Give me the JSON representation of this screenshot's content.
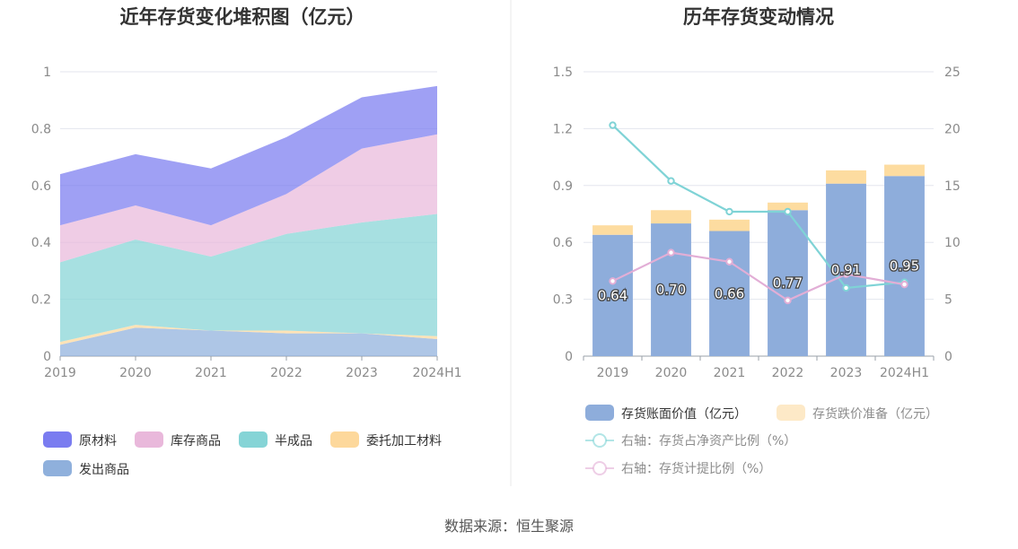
{
  "footer": {
    "source": "数据来源：恒生聚源"
  },
  "chart_data": [
    {
      "type": "area",
      "stacked": true,
      "title": "近年存货变化堆积图（亿元）",
      "x": [
        "2019",
        "2020",
        "2021",
        "2022",
        "2023",
        "2024H1"
      ],
      "ylim": [
        0,
        1
      ],
      "yticks": [
        "0",
        "0.2",
        "0.4",
        "0.6",
        "0.8",
        "1"
      ],
      "grid": true,
      "legend_position": "bottom",
      "series": [
        {
          "name": "发出商品",
          "color": "#8fb0dc",
          "values": [
            0.04,
            0.1,
            0.09,
            0.08,
            0.08,
            0.06
          ]
        },
        {
          "name": "委托加工材料",
          "color": "#fdd89b",
          "values": [
            0.01,
            0.01,
            0.0,
            0.01,
            0.0,
            0.01
          ]
        },
        {
          "name": "半成品",
          "color": "#85d4d6",
          "values": [
            0.28,
            0.3,
            0.26,
            0.34,
            0.39,
            0.43
          ]
        },
        {
          "name": "库存商品",
          "color": "#e9b8db",
          "values": [
            0.13,
            0.12,
            0.11,
            0.14,
            0.26,
            0.28
          ]
        },
        {
          "name": "原材料",
          "color": "#7a7cf0",
          "values": [
            0.18,
            0.18,
            0.2,
            0.2,
            0.18,
            0.17
          ]
        }
      ],
      "legend_order": [
        "原材料",
        "库存商品",
        "半成品",
        "委托加工材料",
        "发出商品"
      ]
    },
    {
      "type": "bar",
      "stacked": true,
      "title": "历年存货变动情况",
      "categories": [
        "2019",
        "2020",
        "2021",
        "2022",
        "2023",
        "2024H1"
      ],
      "ylim": [
        0,
        1.5
      ],
      "yticks": [
        "0",
        "0.3",
        "0.6",
        "0.9",
        "1.2",
        "1.5"
      ],
      "y2lim": [
        0,
        25
      ],
      "y2ticks": [
        "0",
        "5",
        "10",
        "15",
        "20",
        "25"
      ],
      "grid": true,
      "legend_position": "bottom",
      "series": [
        {
          "name": "存货账面价值（亿元）",
          "kind": "bar",
          "axis": "left",
          "color": "#8eaddb",
          "values": [
            0.64,
            0.7,
            0.66,
            0.77,
            0.91,
            0.95
          ],
          "labels": [
            "0.64",
            "0.70",
            "0.66",
            "0.77",
            "0.91",
            "0.95"
          ]
        },
        {
          "name": "存货跌价准备（亿元）",
          "kind": "bar",
          "axis": "left",
          "color": "#fddca0",
          "values": [
            0.05,
            0.07,
            0.06,
            0.04,
            0.07,
            0.06
          ]
        },
        {
          "name": "右轴：存货占净资产比例（%）",
          "kind": "line",
          "axis": "right",
          "color": "#7fd3d6",
          "values": [
            20.3,
            15.4,
            12.7,
            12.7,
            6.0,
            6.5
          ]
        },
        {
          "name": "右轴：存货计提比例（%）",
          "kind": "line",
          "axis": "right",
          "color": "#e2aed6",
          "values": [
            6.6,
            9.1,
            8.3,
            4.9,
            7.2,
            6.3
          ]
        }
      ]
    }
  ]
}
